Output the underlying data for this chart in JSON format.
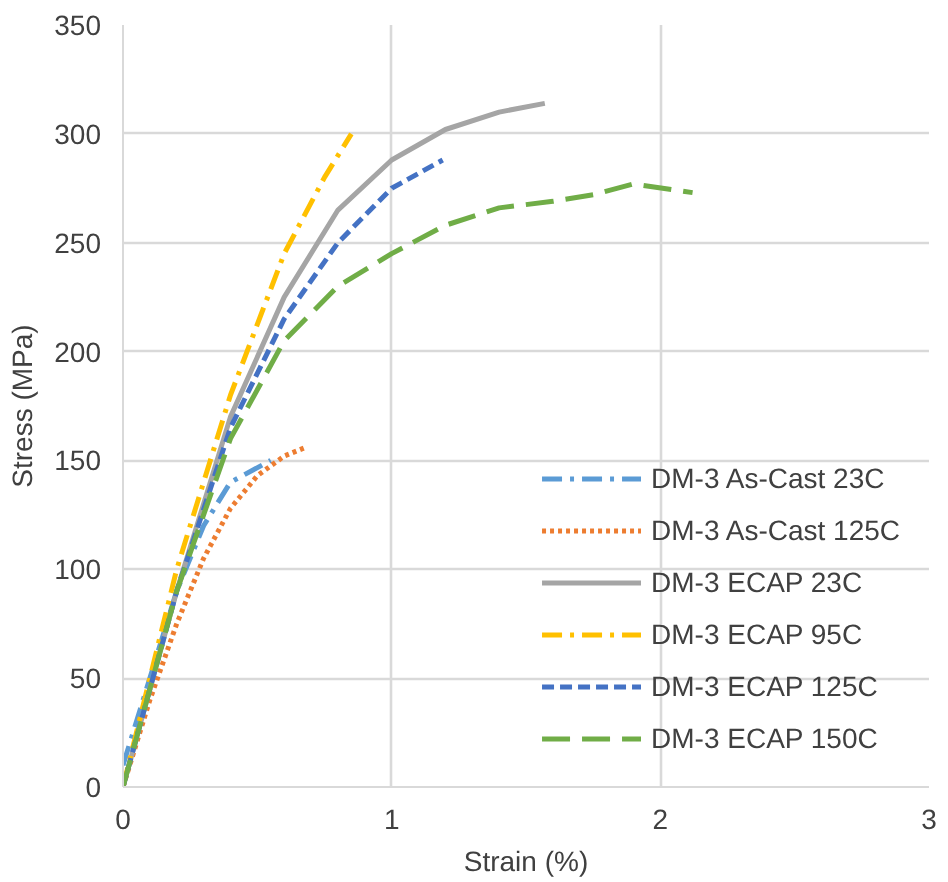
{
  "chart_data": {
    "type": "line",
    "xlabel": "Strain (%)",
    "ylabel": "Stress (MPa)",
    "xlim": [
      0,
      3
    ],
    "xticks": [
      0,
      1,
      2,
      3
    ],
    "ylim": [
      0,
      350
    ],
    "yticks": [
      0,
      50,
      100,
      150,
      200,
      250,
      300,
      350
    ],
    "grid": true,
    "legend": "bottom right",
    "marker": "none",
    "series": [
      {
        "name": "DM-3 As-Cast 23C",
        "color": "#5b9bd5",
        "line_style": "dashdot",
        "x": [
          0,
          0.1,
          0.2,
          0.3,
          0.4,
          0.55
        ],
        "values": [
          10,
          50,
          90,
          120,
          140,
          150
        ]
      },
      {
        "name": "DM-3 As-Cast 125C",
        "color": "#ed7d31",
        "line_style": "dotted",
        "x": [
          0,
          0.1,
          0.2,
          0.3,
          0.4,
          0.5,
          0.6,
          0.68
        ],
        "values": [
          0,
          40,
          75,
          105,
          128,
          143,
          152,
          156
        ]
      },
      {
        "name": "DM-3 ECAP 23C",
        "color": "#a5a5a5",
        "line_style": "solid",
        "x": [
          0,
          0.2,
          0.4,
          0.6,
          0.8,
          1.0,
          1.2,
          1.4,
          1.57
        ],
        "values": [
          0,
          90,
          170,
          225,
          265,
          288,
          302,
          310,
          314
        ]
      },
      {
        "name": "DM-3 ECAP 95C",
        "color": "#ffc000",
        "line_style": "dashdot",
        "x": [
          0,
          0.2,
          0.4,
          0.6,
          0.75,
          0.85
        ],
        "values": [
          0,
          100,
          180,
          245,
          280,
          300
        ]
      },
      {
        "name": "DM-3 ECAP 125C",
        "color": "#4472c4",
        "line_style": "dashed",
        "x": [
          0,
          0.2,
          0.4,
          0.6,
          0.8,
          1.0,
          1.19
        ],
        "values": [
          0,
          90,
          165,
          215,
          250,
          275,
          288
        ]
      },
      {
        "name": "DM-3 ECAP 150C",
        "color": "#70ad47",
        "line_style": "longdash",
        "x": [
          0,
          0.2,
          0.4,
          0.6,
          0.8,
          1.0,
          1.2,
          1.4,
          1.6,
          1.75,
          1.9,
          2.12
        ],
        "values": [
          0,
          90,
          160,
          205,
          230,
          245,
          258,
          266,
          269,
          272,
          277,
          273
        ]
      }
    ]
  }
}
